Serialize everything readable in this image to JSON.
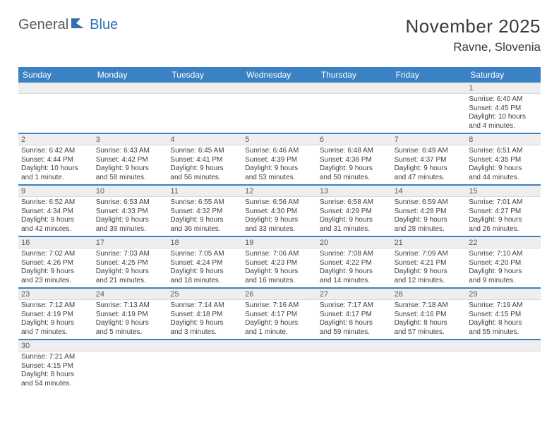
{
  "logo": {
    "part1": "General",
    "part2": "Blue"
  },
  "title": "November 2025",
  "location": "Ravne, Slovenia",
  "colors": {
    "header_bg": "#3a82c4",
    "header_text": "#ffffff",
    "daynum_bg": "#eeeeee",
    "rule": "#3a82c4",
    "body_text": "#3f3f3f",
    "logo_gray": "#5a5a5a",
    "logo_blue": "#2f6fb3"
  },
  "dow": [
    "Sunday",
    "Monday",
    "Tuesday",
    "Wednesday",
    "Thursday",
    "Friday",
    "Saturday"
  ],
  "weeks": [
    [
      {
        "n": "",
        "l1": "",
        "l2": "",
        "l3": "",
        "l4": ""
      },
      {
        "n": "",
        "l1": "",
        "l2": "",
        "l3": "",
        "l4": ""
      },
      {
        "n": "",
        "l1": "",
        "l2": "",
        "l3": "",
        "l4": ""
      },
      {
        "n": "",
        "l1": "",
        "l2": "",
        "l3": "",
        "l4": ""
      },
      {
        "n": "",
        "l1": "",
        "l2": "",
        "l3": "",
        "l4": ""
      },
      {
        "n": "",
        "l1": "",
        "l2": "",
        "l3": "",
        "l4": ""
      },
      {
        "n": "1",
        "l1": "Sunrise: 6:40 AM",
        "l2": "Sunset: 4:45 PM",
        "l3": "Daylight: 10 hours",
        "l4": "and 4 minutes."
      }
    ],
    [
      {
        "n": "2",
        "l1": "Sunrise: 6:42 AM",
        "l2": "Sunset: 4:44 PM",
        "l3": "Daylight: 10 hours",
        "l4": "and 1 minute."
      },
      {
        "n": "3",
        "l1": "Sunrise: 6:43 AM",
        "l2": "Sunset: 4:42 PM",
        "l3": "Daylight: 9 hours",
        "l4": "and 58 minutes."
      },
      {
        "n": "4",
        "l1": "Sunrise: 6:45 AM",
        "l2": "Sunset: 4:41 PM",
        "l3": "Daylight: 9 hours",
        "l4": "and 56 minutes."
      },
      {
        "n": "5",
        "l1": "Sunrise: 6:46 AM",
        "l2": "Sunset: 4:39 PM",
        "l3": "Daylight: 9 hours",
        "l4": "and 53 minutes."
      },
      {
        "n": "6",
        "l1": "Sunrise: 6:48 AM",
        "l2": "Sunset: 4:38 PM",
        "l3": "Daylight: 9 hours",
        "l4": "and 50 minutes."
      },
      {
        "n": "7",
        "l1": "Sunrise: 6:49 AM",
        "l2": "Sunset: 4:37 PM",
        "l3": "Daylight: 9 hours",
        "l4": "and 47 minutes."
      },
      {
        "n": "8",
        "l1": "Sunrise: 6:51 AM",
        "l2": "Sunset: 4:35 PM",
        "l3": "Daylight: 9 hours",
        "l4": "and 44 minutes."
      }
    ],
    [
      {
        "n": "9",
        "l1": "Sunrise: 6:52 AM",
        "l2": "Sunset: 4:34 PM",
        "l3": "Daylight: 9 hours",
        "l4": "and 42 minutes."
      },
      {
        "n": "10",
        "l1": "Sunrise: 6:53 AM",
        "l2": "Sunset: 4:33 PM",
        "l3": "Daylight: 9 hours",
        "l4": "and 39 minutes."
      },
      {
        "n": "11",
        "l1": "Sunrise: 6:55 AM",
        "l2": "Sunset: 4:32 PM",
        "l3": "Daylight: 9 hours",
        "l4": "and 36 minutes."
      },
      {
        "n": "12",
        "l1": "Sunrise: 6:56 AM",
        "l2": "Sunset: 4:30 PM",
        "l3": "Daylight: 9 hours",
        "l4": "and 33 minutes."
      },
      {
        "n": "13",
        "l1": "Sunrise: 6:58 AM",
        "l2": "Sunset: 4:29 PM",
        "l3": "Daylight: 9 hours",
        "l4": "and 31 minutes."
      },
      {
        "n": "14",
        "l1": "Sunrise: 6:59 AM",
        "l2": "Sunset: 4:28 PM",
        "l3": "Daylight: 9 hours",
        "l4": "and 28 minutes."
      },
      {
        "n": "15",
        "l1": "Sunrise: 7:01 AM",
        "l2": "Sunset: 4:27 PM",
        "l3": "Daylight: 9 hours",
        "l4": "and 26 minutes."
      }
    ],
    [
      {
        "n": "16",
        "l1": "Sunrise: 7:02 AM",
        "l2": "Sunset: 4:26 PM",
        "l3": "Daylight: 9 hours",
        "l4": "and 23 minutes."
      },
      {
        "n": "17",
        "l1": "Sunrise: 7:03 AM",
        "l2": "Sunset: 4:25 PM",
        "l3": "Daylight: 9 hours",
        "l4": "and 21 minutes."
      },
      {
        "n": "18",
        "l1": "Sunrise: 7:05 AM",
        "l2": "Sunset: 4:24 PM",
        "l3": "Daylight: 9 hours",
        "l4": "and 18 minutes."
      },
      {
        "n": "19",
        "l1": "Sunrise: 7:06 AM",
        "l2": "Sunset: 4:23 PM",
        "l3": "Daylight: 9 hours",
        "l4": "and 16 minutes."
      },
      {
        "n": "20",
        "l1": "Sunrise: 7:08 AM",
        "l2": "Sunset: 4:22 PM",
        "l3": "Daylight: 9 hours",
        "l4": "and 14 minutes."
      },
      {
        "n": "21",
        "l1": "Sunrise: 7:09 AM",
        "l2": "Sunset: 4:21 PM",
        "l3": "Daylight: 9 hours",
        "l4": "and 12 minutes."
      },
      {
        "n": "22",
        "l1": "Sunrise: 7:10 AM",
        "l2": "Sunset: 4:20 PM",
        "l3": "Daylight: 9 hours",
        "l4": "and 9 minutes."
      }
    ],
    [
      {
        "n": "23",
        "l1": "Sunrise: 7:12 AM",
        "l2": "Sunset: 4:19 PM",
        "l3": "Daylight: 9 hours",
        "l4": "and 7 minutes."
      },
      {
        "n": "24",
        "l1": "Sunrise: 7:13 AM",
        "l2": "Sunset: 4:19 PM",
        "l3": "Daylight: 9 hours",
        "l4": "and 5 minutes."
      },
      {
        "n": "25",
        "l1": "Sunrise: 7:14 AM",
        "l2": "Sunset: 4:18 PM",
        "l3": "Daylight: 9 hours",
        "l4": "and 3 minutes."
      },
      {
        "n": "26",
        "l1": "Sunrise: 7:16 AM",
        "l2": "Sunset: 4:17 PM",
        "l3": "Daylight: 9 hours",
        "l4": "and 1 minute."
      },
      {
        "n": "27",
        "l1": "Sunrise: 7:17 AM",
        "l2": "Sunset: 4:17 PM",
        "l3": "Daylight: 8 hours",
        "l4": "and 59 minutes."
      },
      {
        "n": "28",
        "l1": "Sunrise: 7:18 AM",
        "l2": "Sunset: 4:16 PM",
        "l3": "Daylight: 8 hours",
        "l4": "and 57 minutes."
      },
      {
        "n": "29",
        "l1": "Sunrise: 7:19 AM",
        "l2": "Sunset: 4:15 PM",
        "l3": "Daylight: 8 hours",
        "l4": "and 55 minutes."
      }
    ],
    [
      {
        "n": "30",
        "l1": "Sunrise: 7:21 AM",
        "l2": "Sunset: 4:15 PM",
        "l3": "Daylight: 8 hours",
        "l4": "and 54 minutes."
      },
      {
        "n": "",
        "l1": "",
        "l2": "",
        "l3": "",
        "l4": ""
      },
      {
        "n": "",
        "l1": "",
        "l2": "",
        "l3": "",
        "l4": ""
      },
      {
        "n": "",
        "l1": "",
        "l2": "",
        "l3": "",
        "l4": ""
      },
      {
        "n": "",
        "l1": "",
        "l2": "",
        "l3": "",
        "l4": ""
      },
      {
        "n": "",
        "l1": "",
        "l2": "",
        "l3": "",
        "l4": ""
      },
      {
        "n": "",
        "l1": "",
        "l2": "",
        "l3": "",
        "l4": ""
      }
    ]
  ]
}
